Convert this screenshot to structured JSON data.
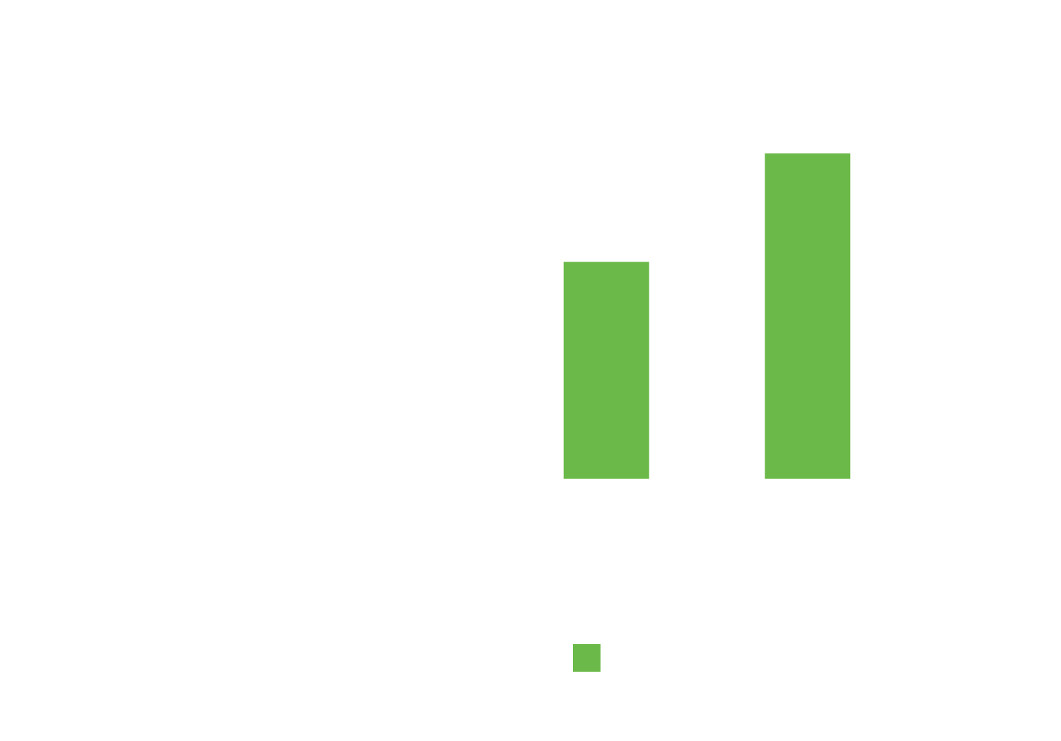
{
  "chart_data": {
    "type": "bar",
    "categories": [
      null,
      null
    ],
    "series": [
      {
        "color": "#6bb948",
        "values": [
          2,
          3
        ]
      }
    ],
    "ylim": [
      0,
      3.5
    ]
  }
}
